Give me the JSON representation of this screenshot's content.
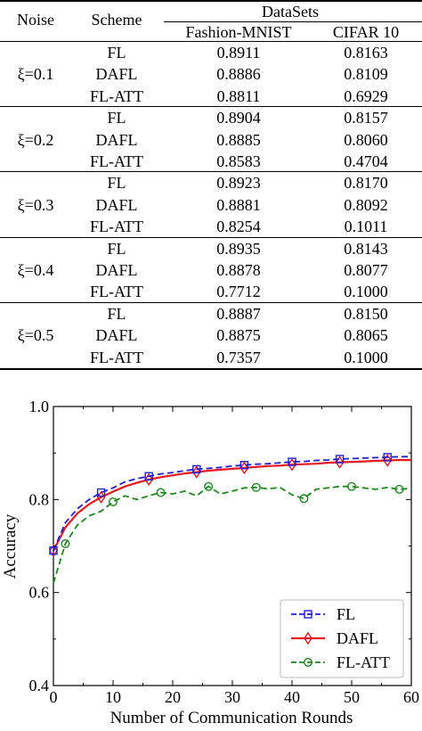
{
  "table": {
    "header": {
      "noise": "Noise",
      "scheme": "Scheme",
      "datasets": "DataSets",
      "fashion": "Fashion-MNIST",
      "cifar": "CIFAR 10"
    },
    "groups": [
      {
        "noise": "ξ=0.1",
        "rows": [
          {
            "scheme": "FL",
            "fashion": "0.8911",
            "cifar": "0.8163"
          },
          {
            "scheme": "DAFL",
            "fashion": "0.8886",
            "cifar": "0.8109"
          },
          {
            "scheme": "FL-ATT",
            "fashion": "0.8811",
            "cifar": "0.6929"
          }
        ]
      },
      {
        "noise": "ξ=0.2",
        "rows": [
          {
            "scheme": "FL",
            "fashion": "0.8904",
            "cifar": "0.8157"
          },
          {
            "scheme": "DAFL",
            "fashion": "0.8885",
            "cifar": "0.8060"
          },
          {
            "scheme": "FL-ATT",
            "fashion": "0.8583",
            "cifar": "0.4704"
          }
        ]
      },
      {
        "noise": "ξ=0.3",
        "rows": [
          {
            "scheme": "FL",
            "fashion": "0.8923",
            "cifar": "0.8170"
          },
          {
            "scheme": "DAFL",
            "fashion": "0.8881",
            "cifar": "0.8092"
          },
          {
            "scheme": "FL-ATT",
            "fashion": "0.8254",
            "cifar": "0.1011"
          }
        ]
      },
      {
        "noise": "ξ=0.4",
        "rows": [
          {
            "scheme": "FL",
            "fashion": "0.8935",
            "cifar": "0.8143"
          },
          {
            "scheme": "DAFL",
            "fashion": "0.8878",
            "cifar": "0.8077"
          },
          {
            "scheme": "FL-ATT",
            "fashion": "0.7712",
            "cifar": "0.1000"
          }
        ]
      },
      {
        "noise": "ξ=0.5",
        "rows": [
          {
            "scheme": "FL",
            "fashion": "0.8887",
            "cifar": "0.8150"
          },
          {
            "scheme": "DAFL",
            "fashion": "0.8875",
            "cifar": "0.8065"
          },
          {
            "scheme": "FL-ATT",
            "fashion": "0.7357",
            "cifar": "0.1000"
          }
        ]
      }
    ]
  },
  "chart_data": {
    "type": "line",
    "xlabel": "Number of Communication Rounds",
    "ylabel": "Accuracy",
    "xlim": [
      0,
      60
    ],
    "ylim": [
      0.4,
      1.0
    ],
    "xticks": [
      "0",
      "10",
      "20",
      "30",
      "40",
      "50",
      "60"
    ],
    "yticks": [
      "0.4",
      "0.6",
      "0.8",
      "1.0"
    ],
    "grid": false,
    "legend_position": "bottom-right",
    "x": [
      0,
      2,
      4,
      6,
      8,
      10,
      12,
      14,
      16,
      18,
      20,
      22,
      24,
      26,
      28,
      30,
      32,
      34,
      36,
      38,
      40,
      42,
      44,
      46,
      48,
      50,
      52,
      54,
      56,
      58,
      60
    ],
    "series": [
      {
        "name": "FL",
        "color": "#1f1fdb",
        "marker": "square",
        "dash": "dashed",
        "values": [
          0.69,
          0.75,
          0.78,
          0.8,
          0.815,
          0.825,
          0.838,
          0.845,
          0.85,
          0.855,
          0.858,
          0.862,
          0.865,
          0.867,
          0.869,
          0.872,
          0.874,
          0.876,
          0.877,
          0.879,
          0.881,
          0.882,
          0.884,
          0.885,
          0.887,
          0.888,
          0.889,
          0.89,
          0.891,
          0.892,
          0.892
        ]
      },
      {
        "name": "DAFL",
        "color": "#e8181f",
        "marker": "diamond",
        "dash": "solid",
        "values": [
          0.69,
          0.74,
          0.77,
          0.79,
          0.805,
          0.817,
          0.828,
          0.836,
          0.843,
          0.848,
          0.852,
          0.856,
          0.859,
          0.862,
          0.864,
          0.866,
          0.868,
          0.87,
          0.872,
          0.873,
          0.875,
          0.876,
          0.877,
          0.879,
          0.88,
          0.881,
          0.882,
          0.883,
          0.884,
          0.885,
          0.885
        ]
      },
      {
        "name": "FL-ATT",
        "color": "#1a8a1a",
        "marker": "circle",
        "dash": "dashed",
        "values": [
          0.62,
          0.705,
          0.745,
          0.765,
          0.775,
          0.795,
          0.808,
          0.8,
          0.808,
          0.815,
          0.812,
          0.818,
          0.808,
          0.828,
          0.812,
          0.818,
          0.825,
          0.826,
          0.823,
          0.826,
          0.81,
          0.802,
          0.822,
          0.825,
          0.828,
          0.828,
          0.825,
          0.822,
          0.826,
          0.822,
          0.824
        ]
      }
    ]
  }
}
